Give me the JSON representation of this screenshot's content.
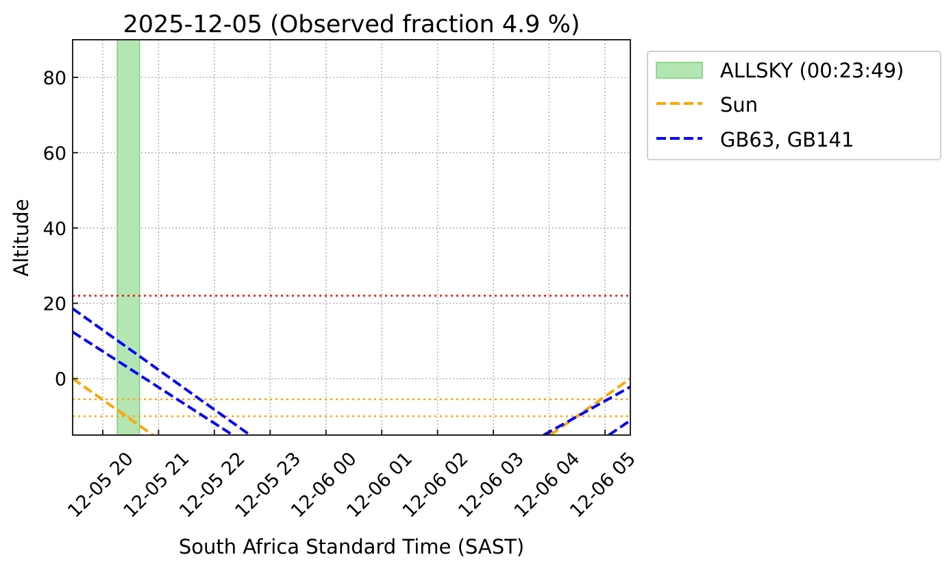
{
  "chart_data": {
    "type": "line",
    "title": "2025-12-05 (Observed fraction 4.9 %)",
    "xlabel": "South Africa Standard Time (SAST)",
    "ylabel": "Altitude",
    "x_units": "hours since 2025-12-05 00:00 SAST",
    "xlim": [
      19.46,
      29.455
    ],
    "ylim": [
      -15,
      90
    ],
    "grid": true,
    "x_ticks": [
      20,
      21,
      22,
      23,
      24,
      25,
      26,
      27,
      28,
      29
    ],
    "x_tick_labels": [
      "12-05 20",
      "12-05 21",
      "12-05 22",
      "12-05 23",
      "12-06 00",
      "12-06 01",
      "12-06 02",
      "12-06 03",
      "12-06 04",
      "12-06 05"
    ],
    "y_ticks": [
      0,
      20,
      40,
      60,
      80
    ],
    "y_tick_labels": [
      "0",
      "20",
      "40",
      "60",
      "80"
    ],
    "legend_placement": "outside-top-right",
    "legend": [
      {
        "label": "ALLSKY (00:23:49)",
        "kind": "patch",
        "color": "#b3e6b3",
        "edge": "#77d077"
      },
      {
        "label": "Sun",
        "kind": "dashed",
        "color": "#ffa500"
      },
      {
        "label": "GB63, GB141",
        "kind": "dashed",
        "color": "#0000ff"
      }
    ],
    "spans": [
      {
        "name": "ALLSKY",
        "x_start": 20.26,
        "x_end": 20.66,
        "color": "#b3e6b3",
        "edge": "#77d077"
      }
    ],
    "hlines": [
      {
        "y": 22,
        "color": "#ff0000",
        "style": "dotted"
      },
      {
        "y": -5.5,
        "color": "#ffa500",
        "style": "dotted"
      },
      {
        "y": -10,
        "color": "#ffa500",
        "style": "dotted"
      }
    ],
    "series": [
      {
        "name": "Sun (setting)",
        "color": "#ffa500",
        "style": "dashed",
        "x": [
          19.46,
          20.9
        ],
        "y": [
          0,
          -15
        ]
      },
      {
        "name": "Sun (rising)",
        "color": "#ffa500",
        "style": "dashed",
        "x": [
          28.02,
          29.455
        ],
        "y": [
          -15,
          0
        ]
      },
      {
        "name": "GB63/GB141 a (setting)",
        "color": "#0000ff",
        "style": "dashed",
        "x": [
          19.46,
          22.64
        ],
        "y": [
          18.6,
          -15
        ]
      },
      {
        "name": "GB63/GB141 b (setting)",
        "color": "#0000ff",
        "style": "dashed",
        "x": [
          19.46,
          22.33
        ],
        "y": [
          12.4,
          -15
        ]
      },
      {
        "name": "GB63/GB141 a (rising)",
        "color": "#0000ff",
        "style": "dashed",
        "x": [
          27.9,
          29.455
        ],
        "y": [
          -15,
          -2.2
        ]
      },
      {
        "name": "GB63/GB141 b (rising)",
        "color": "#0000ff",
        "style": "dashed",
        "x": [
          29.07,
          29.455
        ],
        "y": [
          -15,
          -11.1
        ]
      }
    ]
  }
}
